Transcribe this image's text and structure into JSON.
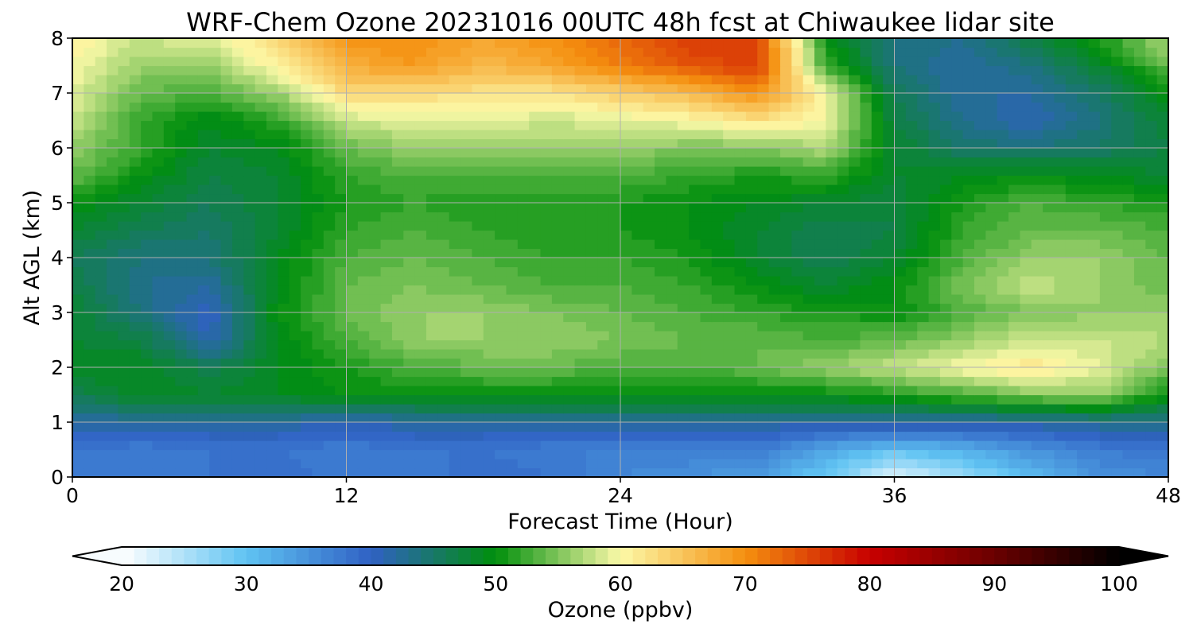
{
  "chart_data": {
    "type": "heatmap",
    "title": "WRF-Chem Ozone  20231016 00UTC 48h fcst at Chiwaukee lidar site",
    "xlabel": "Forecast Time (Hour)",
    "ylabel": "Alt AGL (km)",
    "xlim": [
      0,
      48
    ],
    "ylim": [
      0,
      8
    ],
    "xticks": [
      0,
      12,
      24,
      36,
      48
    ],
    "yticks": [
      0,
      1,
      2,
      3,
      4,
      5,
      6,
      7,
      8
    ],
    "grid": true,
    "x": [
      0,
      3,
      6,
      9,
      12,
      15,
      18,
      21,
      24,
      27,
      30,
      33,
      36,
      39,
      42,
      45,
      48
    ],
    "y": [
      0,
      0.5,
      1,
      1.5,
      2,
      2.5,
      3,
      3.5,
      4,
      4.5,
      5,
      5.5,
      6,
      6.5,
      7,
      7.5,
      8
    ],
    "z": [
      [
        37,
        37,
        38,
        39,
        37,
        37,
        39,
        38,
        36,
        35,
        34,
        29,
        22,
        26,
        31,
        35,
        36
      ],
      [
        38,
        37,
        38,
        38,
        37,
        38,
        38,
        37,
        37,
        37,
        37,
        33,
        30,
        32,
        35,
        37,
        38
      ],
      [
        42,
        42,
        42,
        42,
        41,
        42,
        42,
        42,
        42,
        42,
        42,
        42,
        42,
        42,
        42,
        43,
        43
      ],
      [
        46,
        49,
        48,
        49,
        50,
        50,
        50,
        50,
        50,
        50,
        50,
        50,
        51,
        53,
        55,
        56,
        50
      ],
      [
        49,
        49,
        46,
        49,
        51,
        53,
        54,
        54,
        53,
        53,
        54,
        56,
        58,
        60,
        62,
        59,
        55
      ],
      [
        48,
        47,
        41,
        49,
        53,
        56,
        56,
        56,
        55,
        54,
        54,
        53,
        54,
        56,
        58,
        58,
        57
      ],
      [
        48,
        44,
        40,
        50,
        54,
        56,
        56,
        55,
        54,
        53,
        52,
        51,
        50,
        53,
        55,
        56,
        56
      ],
      [
        47,
        43,
        42,
        49,
        54,
        55,
        54,
        53,
        53,
        52,
        50,
        48,
        50,
        55,
        58,
        56,
        54
      ],
      [
        46,
        44,
        44,
        49,
        53,
        54,
        53,
        52,
        52,
        51,
        48,
        46,
        48,
        53,
        56,
        56,
        54
      ],
      [
        48,
        46,
        45,
        48,
        52,
        53,
        52,
        51,
        51,
        50,
        48,
        46,
        47,
        52,
        54,
        54,
        53
      ],
      [
        50,
        48,
        46,
        48,
        51,
        52,
        51,
        51,
        51,
        50,
        49,
        48,
        47,
        51,
        53,
        52,
        51
      ],
      [
        54,
        50,
        47,
        48,
        52,
        53,
        53,
        53,
        53,
        52,
        51,
        52,
        48,
        49,
        50,
        49,
        48
      ],
      [
        56,
        52,
        48,
        49,
        54,
        56,
        56,
        56,
        56,
        55,
        55,
        57,
        48,
        45,
        44,
        45,
        47
      ],
      [
        58,
        52,
        49,
        52,
        58,
        59,
        59,
        58,
        59,
        60,
        62,
        60,
        47,
        43,
        41,
        44,
        48
      ],
      [
        59,
        54,
        53,
        56,
        63,
        63,
        62,
        62,
        64,
        66,
        70,
        60,
        46,
        42,
        42,
        45,
        50
      ],
      [
        60,
        56,
        56,
        61,
        67,
        69,
        66,
        68,
        71,
        74,
        76,
        52,
        44,
        42,
        44,
        48,
        54
      ],
      [
        61,
        58,
        59,
        63,
        70,
        70,
        68,
        70,
        73,
        76,
        75,
        50,
        44,
        43,
        47,
        51,
        57
      ]
    ],
    "colorbar": {
      "label": "Ozone  (ppbv)",
      "min": 20,
      "max": 100,
      "step": 1,
      "ticks": [
        20,
        30,
        40,
        50,
        60,
        70,
        80,
        90,
        100
      ],
      "extend": "both",
      "anchors": [
        {
          "v": 20,
          "c": "#ffffff"
        },
        {
          "v": 30,
          "c": "#5fc3f2"
        },
        {
          "v": 40,
          "c": "#3061c4"
        },
        {
          "v": 50,
          "c": "#008f0c"
        },
        {
          "v": 60,
          "c": "#fcf9a8"
        },
        {
          "v": 70,
          "c": "#f5900f"
        },
        {
          "v": 80,
          "c": "#c80000"
        },
        {
          "v": 90,
          "c": "#6a0000"
        },
        {
          "v": 100,
          "c": "#000000"
        }
      ]
    }
  }
}
